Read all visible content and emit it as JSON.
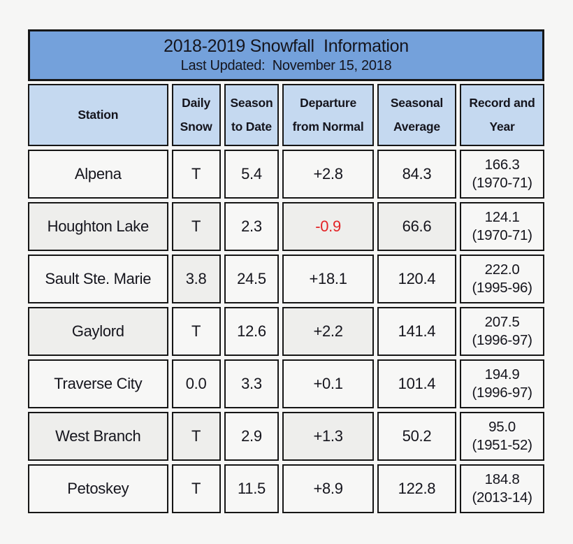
{
  "colors": {
    "page-bg": "#f6f6f5",
    "title-bg": "#74a1db",
    "header-bg": "#c5d9f0",
    "cell-bg": "#f7f7f6",
    "cell-shaded-bg": "#eeeeec",
    "border": "#161616",
    "text": "#15151d",
    "negative": "#e32226"
  },
  "title": {
    "line1": "2018-2019 Snowfall  Information",
    "line2": "Last Updated:  November 15, 2018"
  },
  "columns": {
    "station": {
      "line1": "Station"
    },
    "daily": {
      "line1": "Daily",
      "line2": "Snow"
    },
    "season": {
      "line1": "Season",
      "line2": "to Date"
    },
    "departure": {
      "line1": "Departure",
      "line2": "from Normal"
    },
    "average": {
      "line1": "Seasonal",
      "line2": "Average"
    },
    "record": {
      "line1": "Record and",
      "line2": "Year"
    }
  },
  "rows": [
    {
      "station": {
        "text": "Alpena",
        "shaded": false
      },
      "daily": {
        "text": "T",
        "shaded": false
      },
      "season": {
        "text": "5.4",
        "shaded": false
      },
      "departure": {
        "text": "+2.8",
        "shaded": false,
        "negative": false
      },
      "average": {
        "text": "84.3",
        "shaded": false
      },
      "record": {
        "value": "166.3",
        "year": "(1970-71)",
        "shaded": false
      }
    },
    {
      "station": {
        "text": "Houghton Lake",
        "shaded": true
      },
      "daily": {
        "text": "T",
        "shaded": true
      },
      "season": {
        "text": "2.3",
        "shaded": false
      },
      "departure": {
        "text": "-0.9",
        "shaded": true,
        "negative": true
      },
      "average": {
        "text": "66.6",
        "shaded": true
      },
      "record": {
        "value": "124.1",
        "year": "(1970-71)",
        "shaded": false
      }
    },
    {
      "station": {
        "text": "Sault Ste. Marie",
        "shaded": false
      },
      "daily": {
        "text": "3.8",
        "shaded": true
      },
      "season": {
        "text": "24.5",
        "shaded": false
      },
      "departure": {
        "text": "+18.1",
        "shaded": false,
        "negative": false
      },
      "average": {
        "text": "120.4",
        "shaded": false
      },
      "record": {
        "value": "222.0",
        "year": "(1995-96)",
        "shaded": false
      }
    },
    {
      "station": {
        "text": "Gaylord",
        "shaded": true
      },
      "daily": {
        "text": "T",
        "shaded": false
      },
      "season": {
        "text": "12.6",
        "shaded": false
      },
      "departure": {
        "text": "+2.2",
        "shaded": true,
        "negative": false
      },
      "average": {
        "text": "141.4",
        "shaded": false
      },
      "record": {
        "value": "207.5",
        "year": "(1996-97)",
        "shaded": false
      }
    },
    {
      "station": {
        "text": "Traverse City",
        "shaded": false
      },
      "daily": {
        "text": "0.0",
        "shaded": false
      },
      "season": {
        "text": "3.3",
        "shaded": false
      },
      "departure": {
        "text": "+0.1",
        "shaded": false,
        "negative": false
      },
      "average": {
        "text": "101.4",
        "shaded": false
      },
      "record": {
        "value": "194.9",
        "year": "(1996-97)",
        "shaded": false
      }
    },
    {
      "station": {
        "text": "West Branch",
        "shaded": true
      },
      "daily": {
        "text": "T",
        "shaded": true
      },
      "season": {
        "text": "2.9",
        "shaded": false
      },
      "departure": {
        "text": "+1.3",
        "shaded": true,
        "negative": false
      },
      "average": {
        "text": "50.2",
        "shaded": false
      },
      "record": {
        "value": "95.0",
        "year": "(1951-52)",
        "shaded": false
      }
    },
    {
      "station": {
        "text": "Petoskey",
        "shaded": false
      },
      "daily": {
        "text": "T",
        "shaded": false
      },
      "season": {
        "text": "11.5",
        "shaded": false
      },
      "departure": {
        "text": "+8.9",
        "shaded": false,
        "negative": false
      },
      "average": {
        "text": "122.8",
        "shaded": false
      },
      "record": {
        "value": "184.8",
        "year": "(2013-14)",
        "shaded": false
      }
    }
  ]
}
